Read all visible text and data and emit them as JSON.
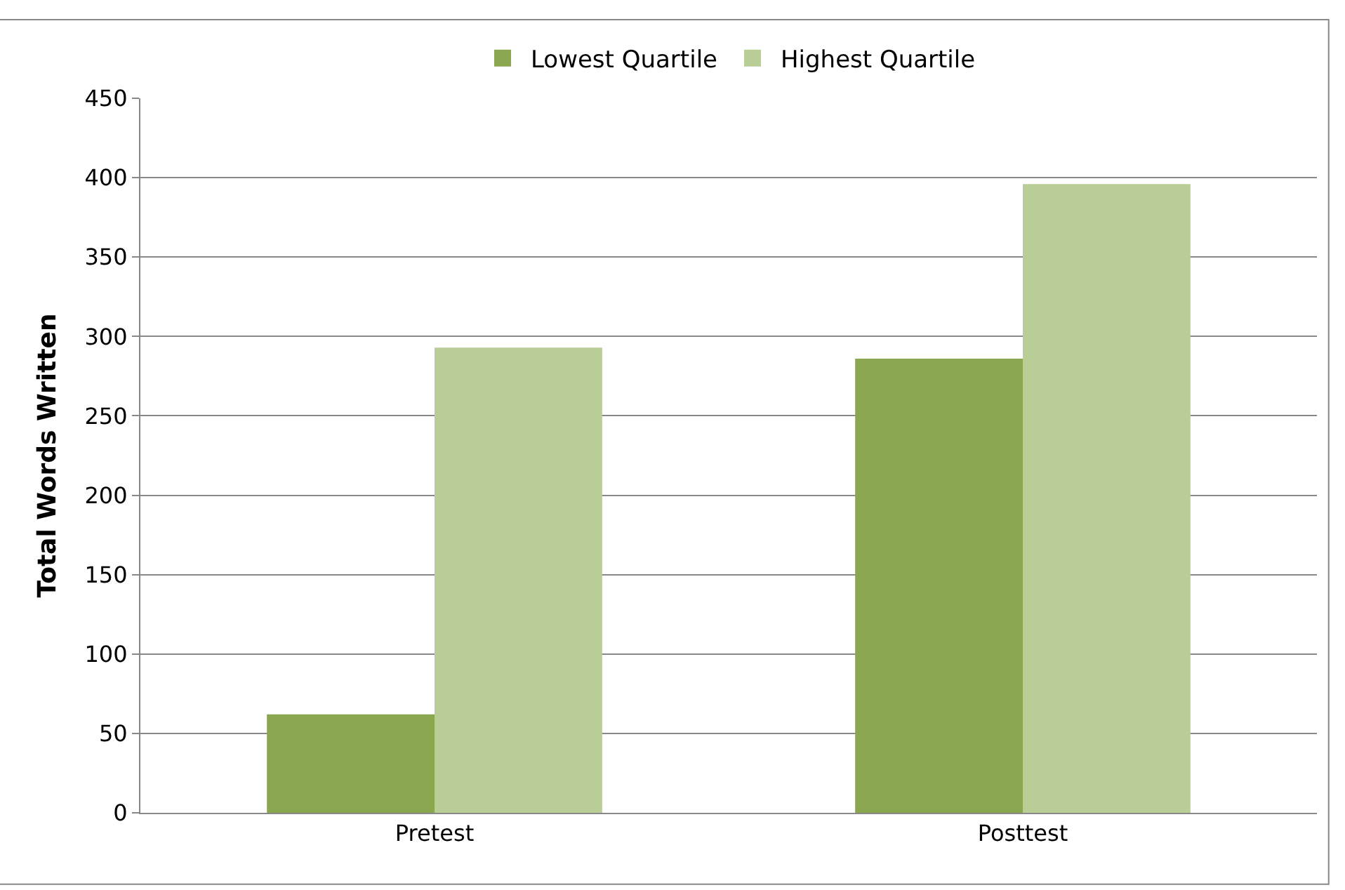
{
  "chart_data": {
    "type": "bar",
    "ylabel": "Total Words Written",
    "categories": [
      "Pretest",
      "Posttest"
    ],
    "series": [
      {
        "name": "Lowest Quartile",
        "color": "#8aa64f",
        "values": [
          62,
          286
        ]
      },
      {
        "name": "Highest Quartile",
        "color": "#b9ce96",
        "values": [
          293,
          396
        ]
      }
    ],
    "ylim": [
      0,
      450
    ],
    "yticks": [
      0,
      50,
      100,
      150,
      200,
      250,
      300,
      350,
      400,
      450
    ],
    "grid": "y",
    "legend": "top"
  }
}
